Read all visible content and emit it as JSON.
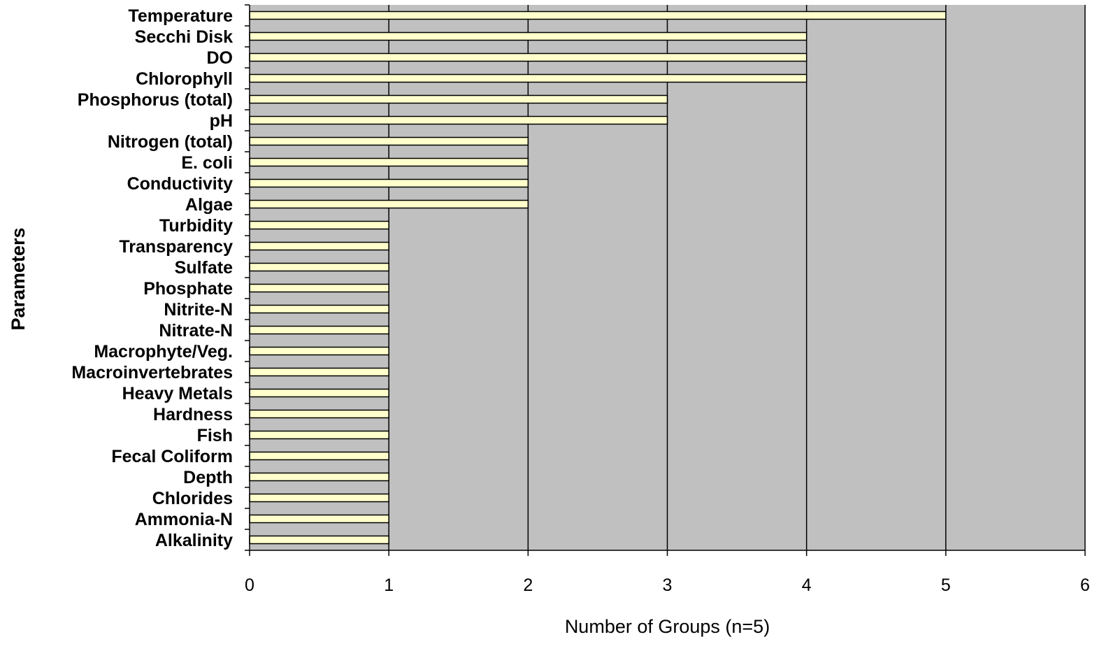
{
  "chart_data": {
    "type": "bar",
    "orientation": "horizontal",
    "title": "",
    "xlabel": "Number of Groups (n=5)",
    "ylabel": "Parameters",
    "xlim": [
      0,
      6
    ],
    "xticks": [
      "0",
      "1",
      "2",
      "3",
      "4",
      "5",
      "6"
    ],
    "grid": "vertical",
    "categories": [
      "Temperature",
      "Secchi Disk",
      "DO",
      "Chlorophyll",
      "Phosphorus (total)",
      "pH",
      "Nitrogen (total)",
      "E. coli",
      "Conductivity",
      "Algae",
      "Turbidity",
      "Transparency",
      "Sulfate",
      "Phosphate",
      "Nitrite-N",
      "Nitrate-N",
      "Macrophyte/Veg.",
      "Macroinvertebrates",
      "Heavy Metals",
      "Hardness",
      "Fish",
      "Fecal Coliform",
      "Depth",
      "Chlorides",
      "Ammonia-N",
      "Alkalinity"
    ],
    "values": [
      5,
      4,
      4,
      4,
      3,
      3,
      2,
      2,
      2,
      2,
      1,
      1,
      1,
      1,
      1,
      1,
      1,
      1,
      1,
      1,
      1,
      1,
      1,
      1,
      1,
      1
    ],
    "colors": {
      "plot_background": "#c0c0c0",
      "bar_fill": "#ffffcc",
      "bar_stroke": "#000000",
      "gridline": "#000000"
    }
  }
}
